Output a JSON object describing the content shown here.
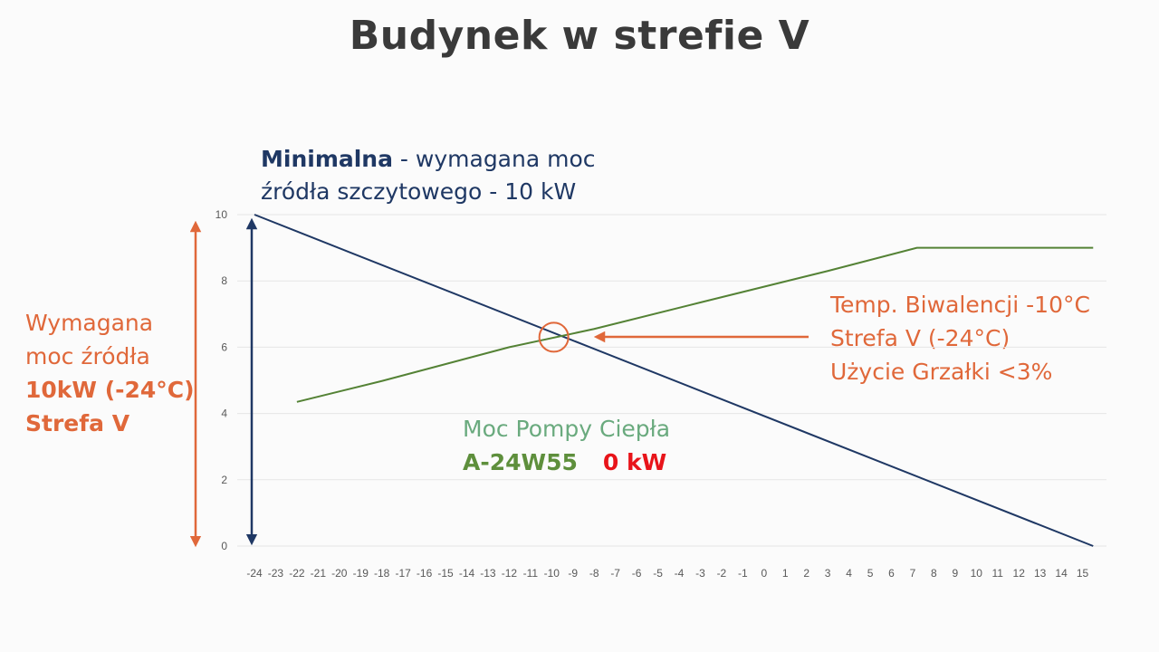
{
  "title": "Budynek w strefie V",
  "min_label": {
    "bold": "Minimalna",
    "rest": " - wymagana moc",
    "line2": "źródła szczytowego  -  10 kW"
  },
  "left_label": {
    "line1": "Wymagana",
    "line2": "moc źródła",
    "line3": "10kW (-24°C)",
    "line4": "Strefa V"
  },
  "biv_label": {
    "line1": "Temp. Biwalencji -10°C",
    "line2": "Strefa V (-24°C)",
    "line3": "Użycie Grzałki  <3%"
  },
  "pump_label": {
    "line1": "Moc Pompy Ciepła",
    "model": "A-24W55",
    "power": "0 kW"
  },
  "colors": {
    "demand": "#1f3864",
    "pump": "#548235",
    "accent": "#e0683a",
    "grid": "#e6e6e6"
  },
  "chart_data": {
    "type": "line",
    "x": [
      -24,
      -23,
      -22,
      -21,
      -20,
      -19,
      -18,
      -17,
      -16,
      -15,
      -14,
      -13,
      -12,
      -11,
      -10,
      -9,
      -8,
      -7,
      -6,
      -5,
      -4,
      -3,
      -2,
      -1,
      0,
      1,
      2,
      3,
      4,
      5,
      6,
      7,
      8,
      9,
      10,
      11,
      12,
      13,
      14,
      15
    ],
    "x_tick_labels": [
      "-24",
      "-23",
      "-22",
      "-21",
      "-20",
      "-19",
      "-18",
      "-17",
      "-16",
      "-15",
      "-14",
      "-13",
      "-12",
      "-11",
      "-10",
      "-9",
      "-8",
      "-7",
      "-6",
      "-5",
      "-4",
      "-3",
      "-2",
      "-1",
      "0",
      "1",
      "2",
      "3",
      "4",
      "5",
      "6",
      "7",
      "8",
      "9",
      "10",
      "11",
      "12",
      "13",
      "14",
      "15"
    ],
    "y_ticks": [
      0,
      2,
      4,
      6,
      8,
      10
    ],
    "ylim": [
      0,
      10
    ],
    "xlim": [
      -24,
      15.5
    ],
    "grid": "horizontal",
    "series": [
      {
        "points": [
          [
            -24,
            10
          ],
          [
            15.5,
            0
          ]
        ]
      },
      {
        "points": [
          [
            -22,
            4.35
          ],
          [
            -18,
            4.98
          ],
          [
            -12,
            6.0
          ],
          [
            -8,
            6.55
          ],
          [
            -3,
            7.35
          ],
          [
            3,
            8.3
          ],
          [
            7.2,
            9.0
          ],
          [
            15.5,
            9.0
          ]
        ]
      }
    ],
    "annotations": {
      "bivalent_point": [
        -9.9,
        6.3
      ]
    }
  }
}
